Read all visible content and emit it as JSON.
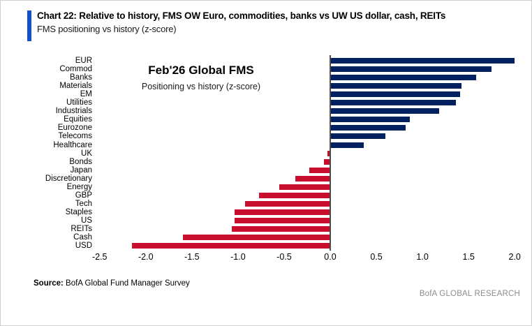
{
  "header": {
    "title": "Chart 22: Relative to history, FMS OW Euro, commodities, banks vs UW US dollar, cash, REITs",
    "subtitle": "FMS positioning vs history (z-score)"
  },
  "chart_data": {
    "type": "bar",
    "orientation": "horizontal",
    "title": "Feb'26 Global FMS",
    "subtitle": "Positioning vs history (z-score)",
    "xlim": [
      -2.5,
      2.0
    ],
    "ticks": [
      -2.5,
      -2.0,
      -1.5,
      -1.0,
      -0.5,
      0.0,
      0.5,
      1.0,
      1.5,
      2.0
    ],
    "grid": false,
    "categories": [
      "EUR",
      "Commod",
      "Banks",
      "Materials",
      "EM",
      "Utilities",
      "Industrials",
      "Equities",
      "Eurozone",
      "Telecoms",
      "Healthcare",
      "UK",
      "Bonds",
      "Japan",
      "Discretionary",
      "Energy",
      "GBP",
      "Tech",
      "Staples",
      "US",
      "REITs",
      "Cash",
      "USD"
    ],
    "values": [
      2.0,
      1.75,
      1.58,
      1.42,
      1.41,
      1.36,
      1.18,
      0.86,
      0.82,
      0.6,
      0.36,
      -0.03,
      -0.07,
      -0.23,
      -0.38,
      -0.55,
      -0.77,
      -0.92,
      -1.04,
      -1.04,
      -1.07,
      -1.6,
      -2.15
    ],
    "positive_color": "#002060",
    "negative_color": "#C8102E"
  },
  "colors": {
    "accent": "#1450d2",
    "axis": "#4d4d4d",
    "brand_gray": "#8c8c8c"
  },
  "footer": {
    "source_label": "Source:",
    "source_text": " BofA Global Fund Manager Survey",
    "brand": "BofA GLOBAL RESEARCH"
  }
}
